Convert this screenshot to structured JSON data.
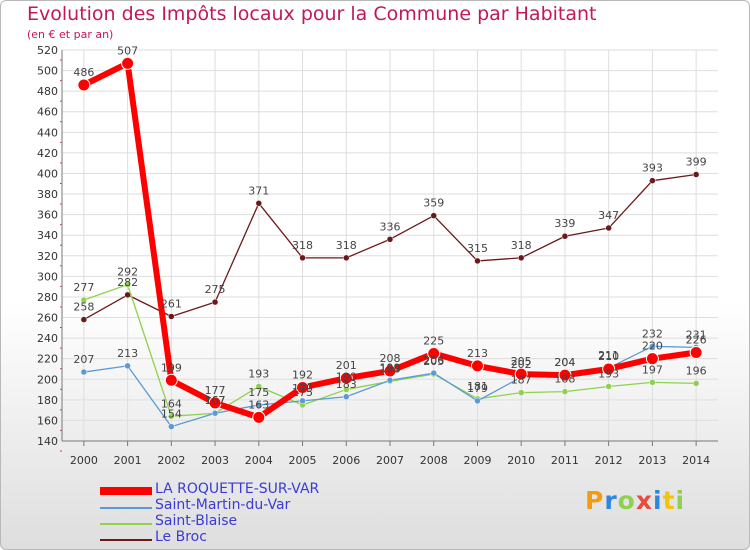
{
  "chart_data": {
    "type": "line",
    "title": "Evolution des Impôts locaux pour la Commune par Habitant",
    "subtitle": "(en € et par an)",
    "xlabel": "",
    "ylabel": "",
    "x": [
      "2000",
      "2001",
      "2002",
      "2003",
      "2004",
      "2005",
      "2006",
      "2007",
      "2008",
      "2009",
      "2010",
      "2011",
      "2012",
      "2013",
      "2014"
    ],
    "ylim": [
      140,
      520
    ],
    "yticks": [
      "140",
      "160",
      "180",
      "200",
      "220",
      "240",
      "260",
      "280",
      "300",
      "320",
      "340",
      "360",
      "380",
      "400",
      "420",
      "440",
      "460",
      "480",
      "500",
      "520"
    ],
    "grid": true,
    "series": [
      {
        "name": "LA ROQUETTE-SUR-VAR",
        "color": "#ff0000",
        "values": [
          486,
          507,
          199,
          177,
          163,
          192,
          201,
          208,
          225,
          213,
          205,
          204,
          210,
          220,
          226
        ],
        "labels": [
          "486",
          "507",
          "199",
          "177",
          "163",
          "192",
          "201",
          "208",
          "225",
          "213",
          "205",
          "204",
          "210",
          "220",
          "226"
        ]
      },
      {
        "name": "Saint-Martin-du-Var",
        "color": "#5b9bd5",
        "values": [
          207,
          213,
          154,
          167,
          175,
          179,
          183,
          199,
          206,
          179,
          202,
          204,
          211,
          232,
          231
        ],
        "labels": [
          "207",
          "213",
          "154",
          "167",
          "175",
          "179",
          "183",
          "199",
          "206",
          "179",
          "202",
          "204",
          "211",
          "232",
          "231"
        ]
      },
      {
        "name": "Saint-Blaise",
        "color": "#8fd14f",
        "values": [
          277,
          292,
          164,
          167,
          193,
          175,
          190,
          198,
          205,
          181,
          187,
          188,
          193,
          197,
          196
        ],
        "labels": [
          "277",
          "292",
          "164",
          "167",
          "193",
          "175",
          "190",
          "198",
          "205",
          "181",
          "187",
          "188",
          "193",
          "197",
          "196"
        ]
      },
      {
        "name": "Le Broc",
        "color": "#6b1a1a",
        "values": [
          258,
          282,
          261,
          275,
          371,
          318,
          318,
          336,
          359,
          315,
          318,
          339,
          347,
          393,
          399
        ],
        "labels": [
          "258",
          "282",
          "261",
          "275",
          "371",
          "318",
          "318",
          "336",
          "359",
          "315",
          "318",
          "339",
          "347",
          "393",
          "399"
        ]
      }
    ]
  },
  "logo": {
    "text": "Proxiti"
  }
}
